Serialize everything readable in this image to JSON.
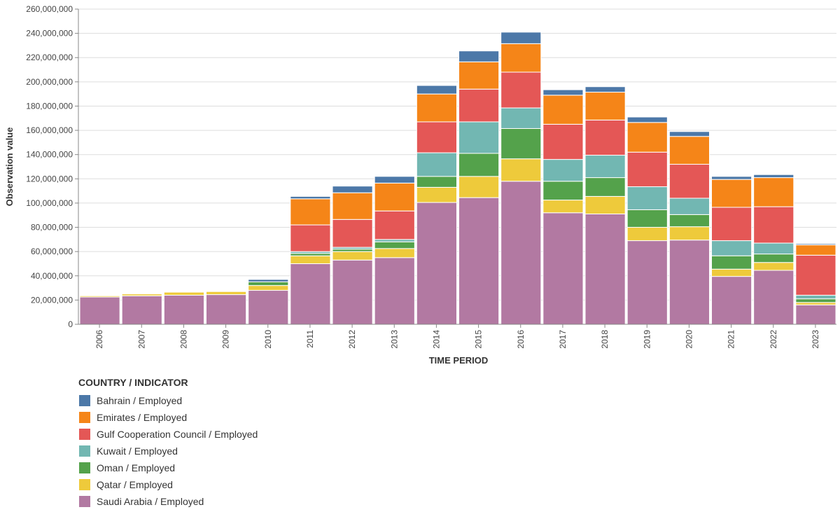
{
  "chart_data": {
    "type": "bar",
    "stacked": true,
    "ylabel": "Observation value",
    "xlabel": "TIME PERIOD",
    "ylim": [
      0,
      260000000
    ],
    "yticks": [
      0,
      20000000,
      40000000,
      60000000,
      80000000,
      100000000,
      120000000,
      140000000,
      160000000,
      180000000,
      200000000,
      220000000,
      240000000,
      260000000
    ],
    "ytick_labels": [
      "0",
      "20,000,000",
      "40,000,000",
      "60,000,000",
      "80,000,000",
      "100,000,000",
      "120,000,000",
      "140,000,000",
      "160,000,000",
      "180,000,000",
      "200,000,000",
      "220,000,000",
      "240,000,000",
      "260,000,000"
    ],
    "grid": true,
    "categories": [
      "2006",
      "2007",
      "2008",
      "2009",
      "2010",
      "2011",
      "2012",
      "2013",
      "2014",
      "2015",
      "2016",
      "2017",
      "2018",
      "2019",
      "2020",
      "2021",
      "2022",
      "2023"
    ],
    "series": [
      {
        "name": "Saudi Arabia / Employed",
        "color": "#b279a2",
        "values": [
          22500000,
          23500000,
          24000000,
          24500000,
          28000000,
          50000000,
          53000000,
          55000000,
          100500000,
          104500000,
          118000000,
          92000000,
          91000000,
          69000000,
          69500000,
          39500000,
          44500000,
          16000000
        ]
      },
      {
        "name": "Qatar / Employed",
        "color": "#eeca3b",
        "values": [
          1000000,
          1500000,
          2500000,
          2500000,
          4000000,
          6500000,
          7000000,
          7500000,
          12500000,
          17500000,
          18500000,
          10500000,
          14500000,
          11000000,
          11000000,
          6000000,
          6500000,
          2000000
        ]
      },
      {
        "name": "Oman / Employed",
        "color": "#54a24b",
        "values": [
          0,
          0,
          0,
          0,
          3000000,
          2000000,
          2000000,
          5500000,
          9000000,
          19000000,
          25000000,
          15500000,
          15500000,
          14500000,
          10000000,
          11000000,
          7000000,
          3000000
        ]
      },
      {
        "name": "Kuwait / Employed",
        "color": "#72b7b2",
        "values": [
          0,
          0,
          0,
          0,
          0,
          1500000,
          1500000,
          2000000,
          19500000,
          26000000,
          17000000,
          18000000,
          18500000,
          19000000,
          13500000,
          12500000,
          9000000,
          3000000
        ]
      },
      {
        "name": "Gulf Cooperation Council / Employed",
        "color": "#e45756",
        "values": [
          0,
          0,
          0,
          0,
          0,
          22000000,
          23000000,
          23500000,
          25500000,
          27000000,
          29500000,
          29000000,
          29000000,
          28500000,
          28000000,
          27500000,
          30000000,
          33000000
        ]
      },
      {
        "name": "Emirates / Employed",
        "color": "#f58518",
        "values": [
          0,
          0,
          0,
          0,
          0,
          21500000,
          22000000,
          23000000,
          23000000,
          22500000,
          23500000,
          24000000,
          23000000,
          24500000,
          23000000,
          23000000,
          24000000,
          8500000
        ]
      },
      {
        "name": "Bahrain / Employed",
        "color": "#4c78a8",
        "values": [
          0,
          0,
          0,
          0,
          2000000,
          2000000,
          5500000,
          5500000,
          7000000,
          9000000,
          9500000,
          4500000,
          4500000,
          4500000,
          4000000,
          2500000,
          2500000,
          1000000
        ]
      }
    ],
    "legend": {
      "title": "COUNTRY / INDICATOR",
      "position": "bottom-left",
      "items": [
        {
          "label": "Bahrain / Employed",
          "color": "#4c78a8"
        },
        {
          "label": "Emirates / Employed",
          "color": "#f58518"
        },
        {
          "label": "Gulf Cooperation Council / Employed",
          "color": "#e45756"
        },
        {
          "label": "Kuwait / Employed",
          "color": "#72b7b2"
        },
        {
          "label": "Oman / Employed",
          "color": "#54a24b"
        },
        {
          "label": "Qatar / Employed",
          "color": "#eeca3b"
        },
        {
          "label": "Saudi Arabia / Employed",
          "color": "#b279a2"
        }
      ]
    }
  }
}
